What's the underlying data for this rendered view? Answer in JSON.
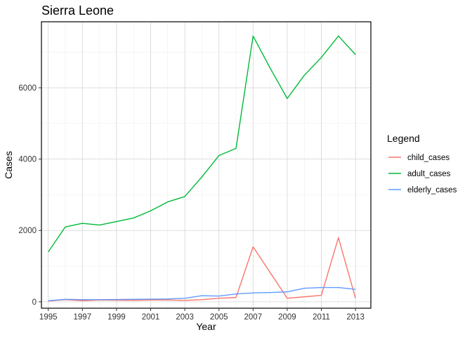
{
  "chart_data": {
    "type": "line",
    "title": "Sierra Leone",
    "xlabel": "Year",
    "ylabel": "Cases",
    "x": [
      1995,
      1996,
      1997,
      1998,
      1999,
      2000,
      2001,
      2002,
      2003,
      2004,
      2005,
      2006,
      2007,
      2008,
      2009,
      2010,
      2011,
      2012,
      2013
    ],
    "xlim": [
      1994.6,
      2013.9
    ],
    "ylim": [
      -180,
      7850
    ],
    "x_ticks": [
      "1995",
      "1997",
      "1999",
      "2001",
      "2003",
      "2005",
      "2007",
      "2009",
      "2011",
      "2013"
    ],
    "y_ticks": [
      "0",
      "2000",
      "4000",
      "6000"
    ],
    "grid": true,
    "legend": {
      "title": "Legend",
      "position": "right"
    },
    "series": [
      {
        "name": "child_cases",
        "color": "#F8766D",
        "values": [
          20,
          60,
          30,
          50,
          45,
          40,
          50,
          50,
          40,
          60,
          100,
          120,
          1540,
          820,
          100,
          140,
          180,
          1800,
          100
        ]
      },
      {
        "name": "adult_cases",
        "color": "#00BA38",
        "values": [
          1400,
          2100,
          2200,
          2150,
          2250,
          2350,
          2550,
          2800,
          2950,
          3500,
          4100,
          4300,
          7450,
          6550,
          5700,
          6350,
          6850,
          7450,
          6930
        ]
      },
      {
        "name": "elderly_cases",
        "color": "#619CFF",
        "values": [
          30,
          70,
          60,
          60,
          65,
          70,
          75,
          80,
          100,
          170,
          160,
          220,
          250,
          260,
          280,
          380,
          400,
          400,
          350
        ]
      }
    ]
  }
}
